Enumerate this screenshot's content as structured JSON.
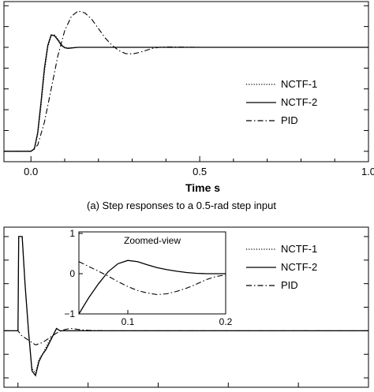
{
  "chart_data": [
    {
      "type": "line",
      "xlabel": "Time s",
      "caption": "(a) Step responses to a 0.5-rad step input",
      "xlim": [
        -0.08,
        1.0
      ],
      "ylim": [
        -0.05,
        0.72
      ],
      "x_ticks": [
        "0.0",
        "0.5",
        "1.0"
      ],
      "x_tick_values": [
        0.0,
        0.5,
        1.0
      ],
      "y_ticks_unlabeled": true,
      "grid": false,
      "legend_position": "right",
      "series": [
        {
          "name": "NCTF-1",
          "style": "dotted",
          "x": [
            -0.08,
            0.0,
            0.01,
            0.02,
            0.03,
            0.04,
            0.05,
            0.06,
            0.07,
            0.08,
            0.09,
            0.1,
            0.11,
            0.12,
            0.14,
            0.16,
            0.2,
            0.3,
            0.4,
            0.6,
            0.8,
            1.0
          ],
          "y": [
            0.0,
            0.0,
            0.01,
            0.08,
            0.22,
            0.38,
            0.5,
            0.556,
            0.56,
            0.54,
            0.515,
            0.5,
            0.497,
            0.498,
            0.5,
            0.5,
            0.5,
            0.5,
            0.5,
            0.5,
            0.5,
            0.5
          ]
        },
        {
          "name": "NCTF-2",
          "style": "solid",
          "x": [
            -0.08,
            0.0,
            0.01,
            0.02,
            0.03,
            0.04,
            0.05,
            0.06,
            0.07,
            0.08,
            0.09,
            0.1,
            0.11,
            0.12,
            0.14,
            0.16,
            0.2,
            0.3,
            0.4,
            0.6,
            0.8,
            1.0
          ],
          "y": [
            0.0,
            0.0,
            0.012,
            0.09,
            0.24,
            0.4,
            0.51,
            0.56,
            0.555,
            0.535,
            0.51,
            0.498,
            0.495,
            0.497,
            0.5,
            0.5,
            0.5,
            0.5,
            0.5,
            0.5,
            0.5,
            0.5
          ]
        },
        {
          "name": "PID",
          "style": "dashdot",
          "x": [
            -0.08,
            0.0,
            0.02,
            0.04,
            0.06,
            0.08,
            0.1,
            0.12,
            0.14,
            0.16,
            0.18,
            0.2,
            0.22,
            0.24,
            0.26,
            0.28,
            0.3,
            0.32,
            0.34,
            0.36,
            0.38,
            0.4,
            0.45,
            0.5,
            0.6,
            0.8,
            1.0
          ],
          "y": [
            0.0,
            0.0,
            0.03,
            0.14,
            0.3,
            0.46,
            0.58,
            0.65,
            0.675,
            0.665,
            0.635,
            0.59,
            0.545,
            0.51,
            0.485,
            0.47,
            0.468,
            0.475,
            0.485,
            0.495,
            0.5,
            0.502,
            0.501,
            0.5,
            0.5,
            0.5,
            0.5
          ]
        }
      ]
    },
    {
      "type": "line",
      "xlim": [
        -0.04,
        1.0
      ],
      "ylim": [
        -1.2,
        2.2
      ],
      "y_ticks_unlabeled": true,
      "grid": false,
      "legend_position": "right",
      "series": [
        {
          "name": "NCTF-1",
          "style": "dotted",
          "x": [
            -0.04,
            0.0,
            0.002,
            0.012,
            0.02,
            0.03,
            0.04,
            0.05,
            0.06,
            0.07,
            0.08,
            0.09,
            0.1,
            0.11,
            0.12,
            0.14,
            0.16,
            0.2,
            0.3,
            0.6,
            1.0
          ],
          "y": [
            0.0,
            0.0,
            2.0,
            2.0,
            1.0,
            0.0,
            -0.8,
            -0.9,
            -0.6,
            -0.5,
            -0.35,
            -0.2,
            -0.1,
            0.05,
            0.0,
            0.0,
            0.0,
            0.0,
            0.0,
            0.0,
            0.0
          ]
        },
        {
          "name": "NCTF-2",
          "style": "solid",
          "x": [
            -0.04,
            0.0,
            0.002,
            0.012,
            0.02,
            0.03,
            0.04,
            0.05,
            0.06,
            0.07,
            0.08,
            0.09,
            0.1,
            0.11,
            0.12,
            0.14,
            0.16,
            0.2,
            0.3,
            0.6,
            1.0
          ],
          "y": [
            0.0,
            0.0,
            2.0,
            2.0,
            1.0,
            0.0,
            -0.85,
            -0.95,
            -0.65,
            -0.5,
            -0.4,
            -0.25,
            -0.1,
            0.05,
            0.0,
            0.0,
            0.0,
            0.0,
            0.0,
            0.0,
            0.0
          ]
        },
        {
          "name": "PID",
          "style": "dashdot",
          "x": [
            -0.04,
            0.0,
            0.01,
            0.03,
            0.05,
            0.07,
            0.09,
            0.11,
            0.13,
            0.15,
            0.17,
            0.2,
            0.25,
            0.3,
            0.4,
            0.6,
            1.0
          ],
          "y": [
            0.0,
            0.0,
            -0.1,
            -0.2,
            -0.3,
            -0.25,
            -0.15,
            -0.05,
            0.02,
            0.05,
            0.03,
            0.01,
            0.0,
            0.0,
            0.0,
            0.0,
            0.0
          ]
        }
      ],
      "inset": {
        "title": "Zoomed-view",
        "xlim": [
          0.05,
          0.2
        ],
        "ylim": [
          -1.0,
          1.0
        ],
        "x_ticks": [
          "0.1",
          "0.2"
        ],
        "x_tick_values": [
          0.1,
          0.2
        ],
        "y_ticks": [
          "1",
          "0",
          "−1"
        ],
        "y_tick_values": [
          1,
          0,
          -1
        ],
        "series": [
          {
            "name": "NCTF-2",
            "style": "solid",
            "x": [
              0.05,
              0.06,
              0.07,
              0.08,
              0.09,
              0.1,
              0.11,
              0.12,
              0.13,
              0.14,
              0.15,
              0.16,
              0.17,
              0.18,
              0.19,
              0.2
            ],
            "y": [
              -1.0,
              -0.6,
              -0.25,
              0.05,
              0.25,
              0.33,
              0.3,
              0.22,
              0.15,
              0.1,
              0.06,
              0.03,
              0.01,
              0.0,
              0.0,
              0.0
            ]
          },
          {
            "name": "PID",
            "style": "dashdot",
            "x": [
              0.05,
              0.06,
              0.07,
              0.08,
              0.09,
              0.1,
              0.11,
              0.12,
              0.13,
              0.14,
              0.15,
              0.16,
              0.17,
              0.18,
              0.19,
              0.2
            ],
            "y": [
              0.3,
              0.18,
              0.06,
              -0.06,
              -0.2,
              -0.32,
              -0.42,
              -0.48,
              -0.52,
              -0.5,
              -0.44,
              -0.36,
              -0.26,
              -0.15,
              -0.07,
              -0.03
            ]
          }
        ]
      }
    }
  ]
}
